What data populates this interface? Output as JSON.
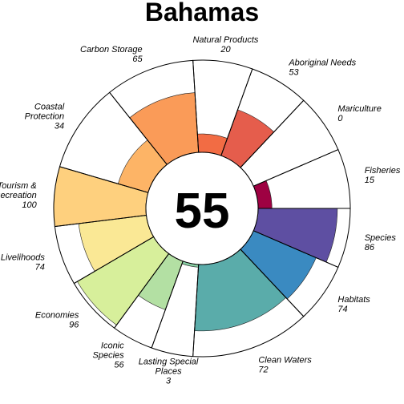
{
  "chart_data": {
    "type": "flower",
    "title": "Bahamas",
    "overall_score": "55",
    "max_score": 100,
    "petals": [
      {
        "name": "Fisheries",
        "label_lines": [
          "Fisheries"
        ],
        "value": 15,
        "weight": 1,
        "color": "#9e0142"
      },
      {
        "name": "Mariculture",
        "label_lines": [
          "Mariculture"
        ],
        "value": 0,
        "weight": 1,
        "color": "#c2294a"
      },
      {
        "name": "Aboriginal Needs",
        "label_lines": [
          "Aboriginal Needs"
        ],
        "value": 53,
        "weight": 1,
        "color": "#e55d4c"
      },
      {
        "name": "Natural Products",
        "label_lines": [
          "Natural Products"
        ],
        "value": 20,
        "weight": 1,
        "color": "#f26c44"
      },
      {
        "name": "Carbon Storage",
        "label_lines": [
          "Carbon Storage"
        ],
        "value": 65,
        "weight": 1.5,
        "color": "#fa9b58"
      },
      {
        "name": "Coastal Protection",
        "label_lines": [
          "Coastal",
          "Protection"
        ],
        "value": 34,
        "weight": 1.5,
        "color": "#fdb466"
      },
      {
        "name": "Tourism & Recreation",
        "label_lines": [
          "Tourism &",
          "Recreation"
        ],
        "value": 100,
        "weight": 1,
        "color": "#fed07e"
      },
      {
        "name": "Livelihoods",
        "label_lines": [
          "Livelihoods"
        ],
        "value": 74,
        "weight": 1,
        "color": "#fae895"
      },
      {
        "name": "Economies",
        "label_lines": [
          "Economies"
        ],
        "value": 96,
        "weight": 1,
        "color": "#d7ef9b"
      },
      {
        "name": "Iconic Species",
        "label_lines": [
          "Iconic",
          "Species"
        ],
        "value": 56,
        "weight": 0.7,
        "color": "#b3e0a3"
      },
      {
        "name": "Lasting Special Places",
        "label_lines": [
          "Lasting Special",
          "Places"
        ],
        "value": 3,
        "weight": 0.7,
        "color": "#88cfa4"
      },
      {
        "name": "Clean Waters",
        "label_lines": [
          "Clean Waters"
        ],
        "value": 72,
        "weight": 2,
        "color": "#5aacaa"
      },
      {
        "name": "Habitats",
        "label_lines": [
          "Habitats"
        ],
        "value": 74,
        "weight": 1,
        "color": "#3a8ac1"
      },
      {
        "name": "Species",
        "label_lines": [
          "Species"
        ],
        "value": 86,
        "weight": 1,
        "color": "#5e4fa2"
      }
    ]
  }
}
